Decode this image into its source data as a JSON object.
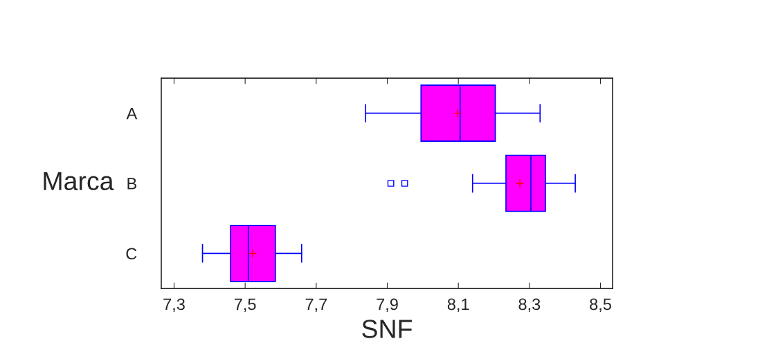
{
  "chart_data": {
    "type": "box",
    "orientation": "horizontal",
    "xlabel": "SNF",
    "ylabel": "Marca",
    "categories": [
      "A",
      "B",
      "C"
    ],
    "series": [
      {
        "color": "#ff00ff",
        "boxes": [
          {
            "low": 7.839,
            "q1": 7.995,
            "median": 8.105,
            "q3": 8.204,
            "high": 8.33,
            "mean": 8.098
          },
          {
            "low": 8.14,
            "q1": 8.234,
            "median": 8.304,
            "q3": 8.345,
            "high": 8.429,
            "mean": 8.273,
            "outliers": [
              7.91,
              7.949
            ]
          },
          {
            "low": 7.38,
            "q1": 7.459,
            "median": 7.509,
            "q3": 7.585,
            "high": 7.659,
            "mean": 7.521
          }
        ]
      }
    ],
    "xlim": [
      7.264,
      8.534
    ],
    "xticks": [
      {
        "value": 7.3,
        "label": "7,3"
      },
      {
        "value": 7.5,
        "label": "7,5"
      },
      {
        "value": 7.7,
        "label": "7,7"
      },
      {
        "value": 7.9,
        "label": "7,9"
      },
      {
        "value": 8.1,
        "label": "8,1"
      },
      {
        "value": 8.3,
        "label": "8,3"
      },
      {
        "value": 8.5,
        "label": "8,5"
      }
    ],
    "grid": false,
    "legend": false
  }
}
